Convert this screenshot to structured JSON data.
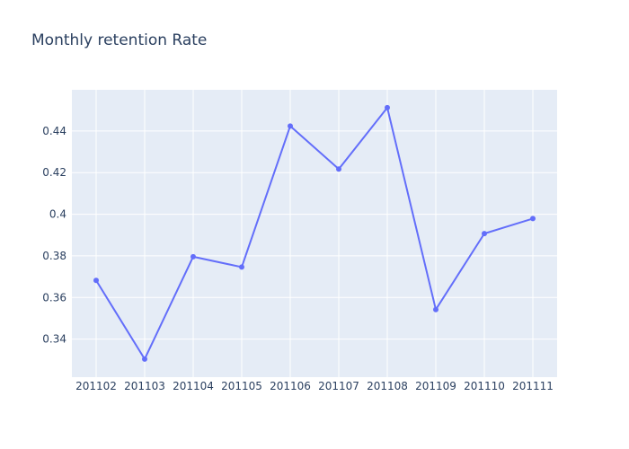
{
  "chart_data": {
    "type": "line",
    "title": "Monthly retention Rate",
    "xlabel": "",
    "ylabel": "",
    "categories": [
      "201102",
      "201103",
      "201104",
      "201105",
      "201106",
      "201107",
      "201108",
      "201109",
      "201110",
      "201111"
    ],
    "series": [
      {
        "values": [
          0.3682,
          0.3304,
          0.3796,
          0.3746,
          0.4424,
          0.4217,
          0.4512,
          0.3542,
          0.3907,
          0.3979
        ],
        "mode": "lines+markers"
      }
    ],
    "y_ticks": [
      "0.34",
      "0.36",
      "0.38",
      "0.4",
      "0.42",
      "0.44"
    ],
    "ylim": [
      0.3217,
      0.4598
    ],
    "grid": true,
    "colors": {
      "line": "#636efa",
      "plot_background": "#e5ecf6",
      "grid": "#ffffff",
      "text": "#2a3f5f"
    }
  }
}
